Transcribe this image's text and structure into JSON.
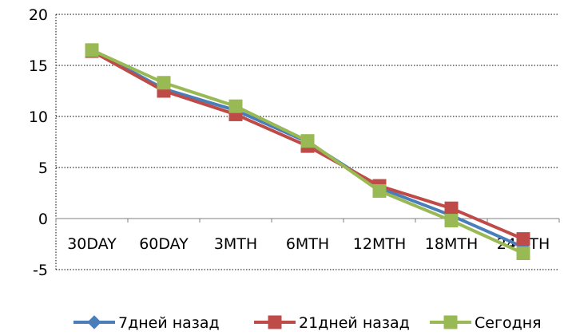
{
  "chart_data": {
    "type": "line",
    "title": "",
    "xlabel": "",
    "ylabel": "",
    "categories": [
      "30DAY",
      "60DAY",
      "3MTH",
      "6MTH",
      "12MTH",
      "18MTH",
      "24MTH"
    ],
    "ylim": [
      -5,
      20
    ],
    "yticks": [
      "20",
      "15",
      "10",
      "5",
      "0",
      "-5"
    ],
    "ytick_values": [
      20,
      15,
      10,
      5,
      0,
      -5
    ],
    "grid": "horizontal dotted",
    "legend_position": "bottom",
    "series": [
      {
        "name": "7дней назад",
        "color": "#4a7ebb",
        "marker": "diamond",
        "values": [
          16.5,
          12.7,
          10.6,
          7.5,
          3.0,
          0.3,
          -2.8
        ]
      },
      {
        "name": "21дней назад",
        "color": "#be4b48",
        "marker": "square",
        "values": [
          16.4,
          12.5,
          10.2,
          7.1,
          3.2,
          1.0,
          -2.0
        ]
      },
      {
        "name": "Сегодня",
        "color": "#98b954",
        "marker": "square",
        "values": [
          16.5,
          13.3,
          11.0,
          7.6,
          2.7,
          -0.2,
          -3.4
        ]
      }
    ]
  }
}
